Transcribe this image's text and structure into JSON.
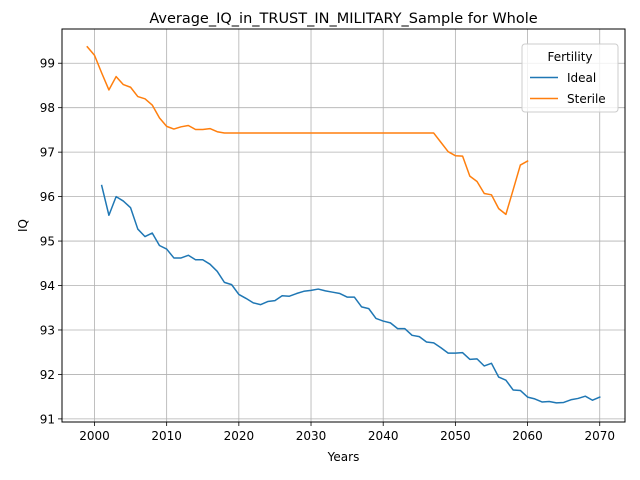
{
  "chart_data": {
    "type": "line",
    "title": "Average_IQ_in_TRUST_IN_MILITARY_Sample for Whole",
    "xlabel": "Years",
    "ylabel": "IQ",
    "xlim": [
      1995.5,
      2073.5
    ],
    "ylim": [
      90.93,
      99.77
    ],
    "xticks": [
      2000,
      2010,
      2020,
      2030,
      2040,
      2050,
      2060,
      2070
    ],
    "yticks": [
      91,
      92,
      93,
      94,
      95,
      96,
      97,
      98,
      99
    ],
    "grid": true,
    "legend": {
      "title": "Fertility",
      "placement": "top-right"
    },
    "series": [
      {
        "name": "Ideal",
        "color": "#1f77b4",
        "x": [
          2001,
          2002,
          2003,
          2004,
          2005,
          2006,
          2007,
          2008,
          2009,
          2010,
          2011,
          2012,
          2013,
          2014,
          2015,
          2016,
          2017,
          2018,
          2019,
          2020,
          2021,
          2022,
          2023,
          2024,
          2025,
          2026,
          2027,
          2028,
          2029,
          2030,
          2031,
          2032,
          2033,
          2034,
          2035,
          2036,
          2037,
          2038,
          2039,
          2040,
          2041,
          2042,
          2043,
          2044,
          2045,
          2046,
          2047,
          2048,
          2049,
          2050,
          2051,
          2052,
          2053,
          2054,
          2055,
          2056,
          2057,
          2058,
          2059,
          2060,
          2061,
          2062,
          2063,
          2064,
          2065,
          2066,
          2067,
          2068,
          2069,
          2070
        ],
        "y": [
          96.25,
          95.58,
          96.0,
          95.9,
          95.75,
          95.27,
          95.1,
          95.18,
          94.9,
          94.82,
          94.62,
          94.62,
          94.68,
          94.58,
          94.58,
          94.48,
          94.32,
          94.07,
          94.02,
          93.8,
          93.71,
          93.61,
          93.57,
          93.64,
          93.66,
          93.77,
          93.76,
          93.82,
          93.87,
          93.89,
          93.92,
          93.88,
          93.85,
          93.82,
          93.74,
          93.74,
          93.52,
          93.48,
          93.26,
          93.2,
          93.16,
          93.03,
          93.03,
          92.88,
          92.85,
          92.73,
          92.71,
          92.6,
          92.48,
          92.48,
          92.49,
          92.34,
          92.35,
          92.19,
          92.25,
          91.94,
          91.87,
          91.65,
          91.64,
          91.49,
          91.45,
          91.38,
          91.39,
          91.36,
          91.37,
          91.43,
          91.46,
          91.51,
          91.42,
          91.49
        ]
      },
      {
        "name": "Sterile",
        "color": "#ff7f0e",
        "x": [
          1999,
          2000,
          2001,
          2002,
          2003,
          2004,
          2005,
          2006,
          2007,
          2008,
          2009,
          2010,
          2011,
          2012,
          2013,
          2014,
          2015,
          2016,
          2017,
          2018,
          2019,
          2020,
          2021,
          2022,
          2023,
          2024,
          2025,
          2026,
          2027,
          2028,
          2029,
          2030,
          2031,
          2032,
          2033,
          2034,
          2035,
          2036,
          2037,
          2038,
          2039,
          2040,
          2041,
          2042,
          2043,
          2044,
          2045,
          2046,
          2047,
          2048,
          2049,
          2050,
          2051,
          2052,
          2053,
          2054,
          2055,
          2056,
          2057,
          2058,
          2059,
          2060
        ],
        "y": [
          99.37,
          99.18,
          98.78,
          98.4,
          98.7,
          98.52,
          98.46,
          98.25,
          98.2,
          98.06,
          97.77,
          97.58,
          97.52,
          97.57,
          97.6,
          97.51,
          97.51,
          97.53,
          97.46,
          97.43,
          97.43,
          97.43,
          97.43,
          97.43,
          97.43,
          97.43,
          97.43,
          97.43,
          97.43,
          97.43,
          97.43,
          97.43,
          97.43,
          97.43,
          97.43,
          97.43,
          97.43,
          97.43,
          97.43,
          97.43,
          97.43,
          97.43,
          97.43,
          97.43,
          97.43,
          97.43,
          97.43,
          97.43,
          97.43,
          97.22,
          97.01,
          96.92,
          96.91,
          96.46,
          96.34,
          96.07,
          96.04,
          95.73,
          95.6,
          96.15,
          96.71,
          96.8
        ]
      }
    ]
  }
}
